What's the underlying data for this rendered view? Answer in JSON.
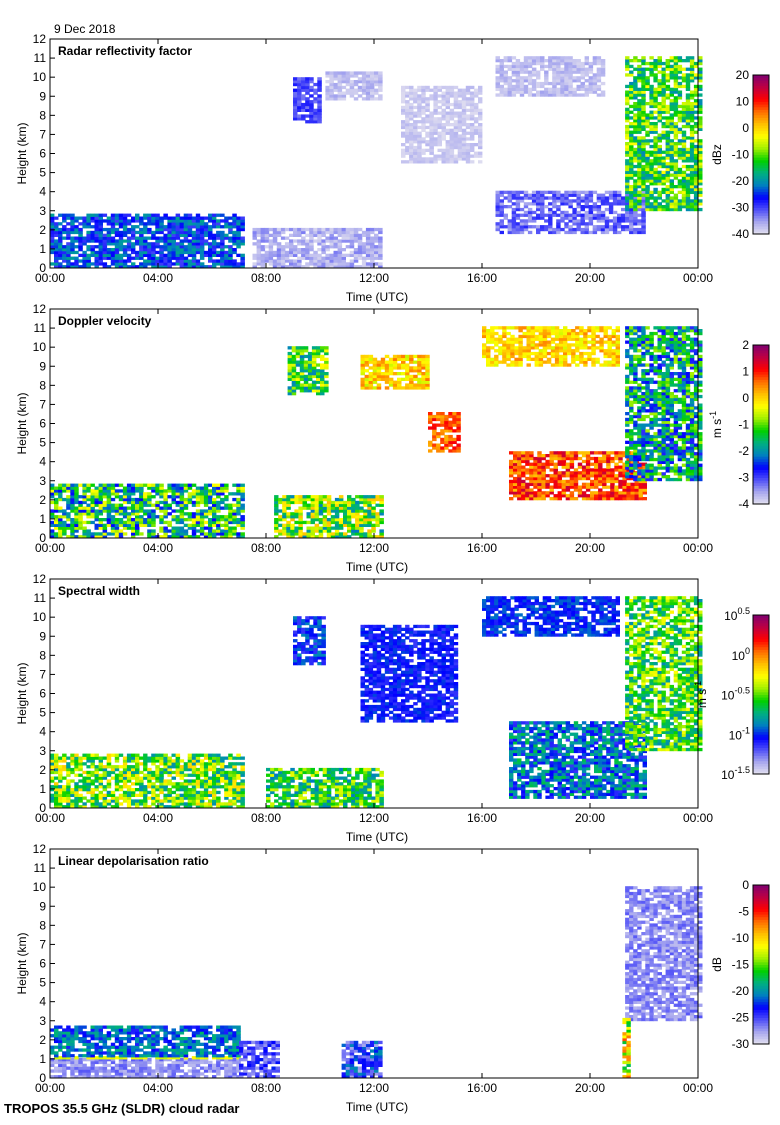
{
  "date_label": "9 Dec 2018",
  "footer": "TROPOS 35.5 GHz (SLDR) cloud radar",
  "colors": {
    "colormap": [
      "#e4e2f0",
      "#a8a8ee",
      "#5050f8",
      "#0000ff",
      "#0080c0",
      "#00b080",
      "#00d000",
      "#a0f000",
      "#ffff00",
      "#ffc000",
      "#ff7000",
      "#ff0000",
      "#c00040",
      "#800070"
    ]
  },
  "chart_data": [
    {
      "type": "heatmap",
      "title": "Radar reflectivity factor",
      "xlabel": "Time (UTC)",
      "ylabel": "Height (km)",
      "xlim": [
        0,
        24
      ],
      "xtick_labels": [
        "00:00",
        "04:00",
        "08:00",
        "12:00",
        "16:00",
        "20:00",
        "00:00"
      ],
      "ylim": [
        0,
        12
      ],
      "ytick_labels": [
        "0",
        "1",
        "2",
        "3",
        "4",
        "5",
        "6",
        "7",
        "8",
        "9",
        "10",
        "11",
        "12"
      ],
      "colorbar": {
        "label": "dBz",
        "range": [
          -40,
          20
        ],
        "tick_labels": [
          "20",
          "10",
          "0",
          "-10",
          "-20",
          "-30",
          "-40"
        ]
      },
      "regions": [
        {
          "t": [
            0,
            7.2
          ],
          "h": [
            0,
            2.7
          ],
          "value": -24,
          "spread": 12
        },
        {
          "t": [
            7.5,
            12.3
          ],
          "h": [
            0,
            2.0
          ],
          "value": -36,
          "spread": 6
        },
        {
          "t": [
            9.0,
            10.0
          ],
          "h": [
            7.6,
            10.0
          ],
          "value": -30,
          "spread": 6
        },
        {
          "t": [
            10.2,
            12.2
          ],
          "h": [
            8.8,
            10.2
          ],
          "value": -37,
          "spread": 4
        },
        {
          "t": [
            13.0,
            16.0
          ],
          "h": [
            5.5,
            9.5
          ],
          "value": -38,
          "spread": 3
        },
        {
          "t": [
            16.5,
            22.0
          ],
          "h": [
            1.8,
            4.0
          ],
          "value": -32,
          "spread": 8
        },
        {
          "t": [
            16.5,
            20.5
          ],
          "h": [
            9.0,
            11.0
          ],
          "value": -37,
          "spread": 4
        },
        {
          "t": [
            21.3,
            24.0
          ],
          "h": [
            3.0,
            11.0
          ],
          "value": -12,
          "spread": 18
        }
      ]
    },
    {
      "type": "heatmap",
      "title": "Doppler velocity",
      "xlabel": "Time (UTC)",
      "ylabel": "Height (km)",
      "xlim": [
        0,
        24
      ],
      "xtick_labels": [
        "00:00",
        "04:00",
        "08:00",
        "12:00",
        "16:00",
        "20:00",
        "00:00"
      ],
      "ylim": [
        0,
        12
      ],
      "ytick_labels": [
        "0",
        "1",
        "2",
        "3",
        "4",
        "5",
        "6",
        "7",
        "8",
        "9",
        "10",
        "11",
        "12"
      ],
      "colorbar": {
        "label_main": "m s",
        "label_sup": "-1",
        "range": [
          -4,
          2
        ],
        "tick_labels": [
          "2",
          "1",
          "0",
          "-1",
          "-2",
          "-3",
          "-4"
        ]
      },
      "regions": [
        {
          "t": [
            0,
            7.2
          ],
          "h": [
            0,
            2.8
          ],
          "value": -1.5,
          "spread": 2.5
        },
        {
          "t": [
            8.3,
            12.3
          ],
          "h": [
            0,
            2.2
          ],
          "value": -1.0,
          "spread": 2.4
        },
        {
          "t": [
            8.8,
            10.2
          ],
          "h": [
            7.5,
            10.0
          ],
          "value": -1.2,
          "spread": 2.0
        },
        {
          "t": [
            11.5,
            14.0
          ],
          "h": [
            7.8,
            9.6
          ],
          "value": 0.0,
          "spread": 1.2
        },
        {
          "t": [
            14.0,
            15.2
          ],
          "h": [
            4.5,
            6.5
          ],
          "value": 0.7,
          "spread": 1.0
        },
        {
          "t": [
            16.0,
            21.0
          ],
          "h": [
            9.0,
            11.0
          ],
          "value": 0.0,
          "spread": 1.0
        },
        {
          "t": [
            17.0,
            22.0
          ],
          "h": [
            2.0,
            4.5
          ],
          "value": 0.8,
          "spread": 1.4
        },
        {
          "t": [
            21.3,
            24.0
          ],
          "h": [
            3.0,
            11.0
          ],
          "value": -1.8,
          "spread": 2.2
        }
      ]
    },
    {
      "type": "heatmap",
      "title": "Spectral width",
      "xlabel": "Time (UTC)",
      "ylabel": "Height (km)",
      "xlim": [
        0,
        24
      ],
      "xtick_labels": [
        "00:00",
        "04:00",
        "08:00",
        "12:00",
        "16:00",
        "20:00",
        "00:00"
      ],
      "ylim": [
        0,
        12
      ],
      "ytick_labels": [
        "0",
        "1",
        "2",
        "3",
        "4",
        "5",
        "6",
        "7",
        "8",
        "9",
        "10",
        "11",
        "12"
      ],
      "colorbar": {
        "label_main": "m s",
        "label_sup": "-1",
        "scale": "log",
        "range": [
          -1.5,
          0.5
        ],
        "tick_labels": [
          {
            "base": "10",
            "exp": "0.5"
          },
          {
            "base": "10",
            "exp": "0"
          },
          {
            "base": "10",
            "exp": "-0.5"
          },
          {
            "base": "10",
            "exp": "-1"
          },
          {
            "base": "10",
            "exp": "-1.5"
          }
        ]
      },
      "regions": [
        {
          "t": [
            0,
            7.2
          ],
          "h": [
            0,
            2.8
          ],
          "value": -0.5,
          "spread": 0.7
        },
        {
          "t": [
            8.0,
            12.3
          ],
          "h": [
            0,
            2.0
          ],
          "value": -0.6,
          "spread": 0.6
        },
        {
          "t": [
            9.0,
            10.2
          ],
          "h": [
            7.5,
            10.0
          ],
          "value": -1.0,
          "spread": 0.3
        },
        {
          "t": [
            11.5,
            15.0
          ],
          "h": [
            4.5,
            9.5
          ],
          "value": -1.05,
          "spread": 0.2
        },
        {
          "t": [
            16.0,
            21.0
          ],
          "h": [
            9.0,
            11.0
          ],
          "value": -1.0,
          "spread": 0.2
        },
        {
          "t": [
            17.0,
            22.0
          ],
          "h": [
            0.5,
            4.5
          ],
          "value": -0.9,
          "spread": 0.5
        },
        {
          "t": [
            21.3,
            24.0
          ],
          "h": [
            3.0,
            11.0
          ],
          "value": -0.55,
          "spread": 0.6
        }
      ]
    },
    {
      "type": "heatmap",
      "title": "Linear depolarisation ratio",
      "xlabel": "Time (UTC)",
      "ylabel": "Height (km)",
      "xlim": [
        0,
        24
      ],
      "xtick_labels": [
        "00:00",
        "04:00",
        "08:00",
        "12:00",
        "16:00",
        "20:00",
        "00:00"
      ],
      "ylim": [
        0,
        12
      ],
      "ytick_labels": [
        "0",
        "1",
        "2",
        "3",
        "4",
        "5",
        "6",
        "7",
        "8",
        "9",
        "10",
        "11",
        "12"
      ],
      "colorbar": {
        "label": "dB",
        "range": [
          -30,
          0
        ],
        "tick_labels": [
          "0",
          "-5",
          "-10",
          "-15",
          "-20",
          "-25",
          "-30"
        ]
      },
      "regions": [
        {
          "t": [
            0,
            7.0
          ],
          "h": [
            0,
            1.0
          ],
          "value": -27,
          "spread": 3
        },
        {
          "t": [
            0,
            7.0
          ],
          "h": [
            1.0,
            1.1
          ],
          "value": -12,
          "spread": 2
        },
        {
          "t": [
            0,
            7.0
          ],
          "h": [
            1.1,
            2.7
          ],
          "value": -21,
          "spread": 6
        },
        {
          "t": [
            7.0,
            8.5
          ],
          "h": [
            0,
            1.8
          ],
          "value": -25,
          "spread": 5
        },
        {
          "t": [
            10.8,
            12.3
          ],
          "h": [
            0,
            1.8
          ],
          "value": -24,
          "spread": 8
        },
        {
          "t": [
            21.3,
            24.0
          ],
          "h": [
            3.0,
            10.0
          ],
          "value": -27,
          "spread": 3
        },
        {
          "t": [
            21.2,
            21.4
          ],
          "h": [
            0,
            3.0
          ],
          "value": -12,
          "spread": 12
        }
      ]
    }
  ]
}
